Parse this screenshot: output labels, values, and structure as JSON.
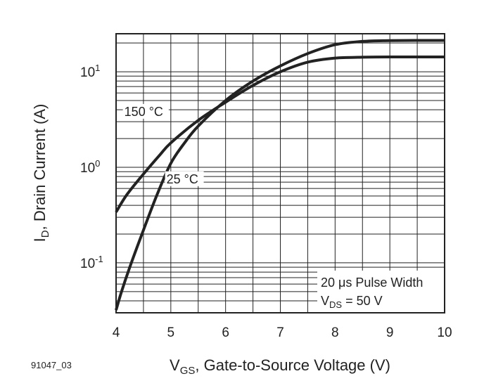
{
  "figure_id": "91047_03",
  "chart_data": {
    "type": "line",
    "title": "",
    "xlabel": {
      "main": "V",
      "sub": "GS",
      "rest": ", Gate-to-Source Voltage (V)"
    },
    "ylabel": {
      "main": "I",
      "sub": "D",
      "rest": ", Drain Current (A)"
    },
    "xlim": [
      4,
      10
    ],
    "ylim": [
      0.03,
      25
    ],
    "y_scale": "log",
    "grid": true,
    "x_ticks": [
      "4",
      "5",
      "6",
      "7",
      "8",
      "9",
      "10"
    ],
    "y_ticks": [
      {
        "value": 0.1,
        "base": "10",
        "exp": "-1"
      },
      {
        "value": 1,
        "base": "10",
        "exp": "0"
      },
      {
        "value": 10,
        "base": "10",
        "exp": "1"
      }
    ],
    "series": [
      {
        "name": "150 °C",
        "label_at": [
          4.15,
          3.45
        ],
        "points": [
          [
            4.0,
            0.34
          ],
          [
            4.2,
            0.52
          ],
          [
            4.5,
            0.85
          ],
          [
            4.8,
            1.35
          ],
          [
            5.0,
            1.8
          ],
          [
            5.5,
            3.1
          ],
          [
            6.0,
            4.8
          ],
          [
            6.5,
            7.2
          ],
          [
            7.0,
            10.0
          ],
          [
            7.5,
            12.6
          ],
          [
            8.0,
            13.9
          ],
          [
            8.5,
            14.2
          ],
          [
            9.0,
            14.3
          ],
          [
            10.0,
            14.3
          ]
        ]
      },
      {
        "name": "25 °C",
        "label_at": [
          4.92,
          0.68
        ],
        "points": [
          [
            4.0,
            0.032
          ],
          [
            4.1,
            0.05
          ],
          [
            4.25,
            0.09
          ],
          [
            4.5,
            0.22
          ],
          [
            4.75,
            0.52
          ],
          [
            5.0,
            1.1
          ],
          [
            5.25,
            1.8
          ],
          [
            5.5,
            2.7
          ],
          [
            6.0,
            5.0
          ],
          [
            6.5,
            8.0
          ],
          [
            7.0,
            11.5
          ],
          [
            7.5,
            15.5
          ],
          [
            8.0,
            19.2
          ],
          [
            8.5,
            20.8
          ],
          [
            9.0,
            21.2
          ],
          [
            10.0,
            21.3
          ]
        ]
      }
    ],
    "annotation": {
      "line1": "20 μs Pulse Width",
      "line2_main": "V",
      "line2_sub": "DS",
      "line2_rest": " = 50 V"
    }
  }
}
